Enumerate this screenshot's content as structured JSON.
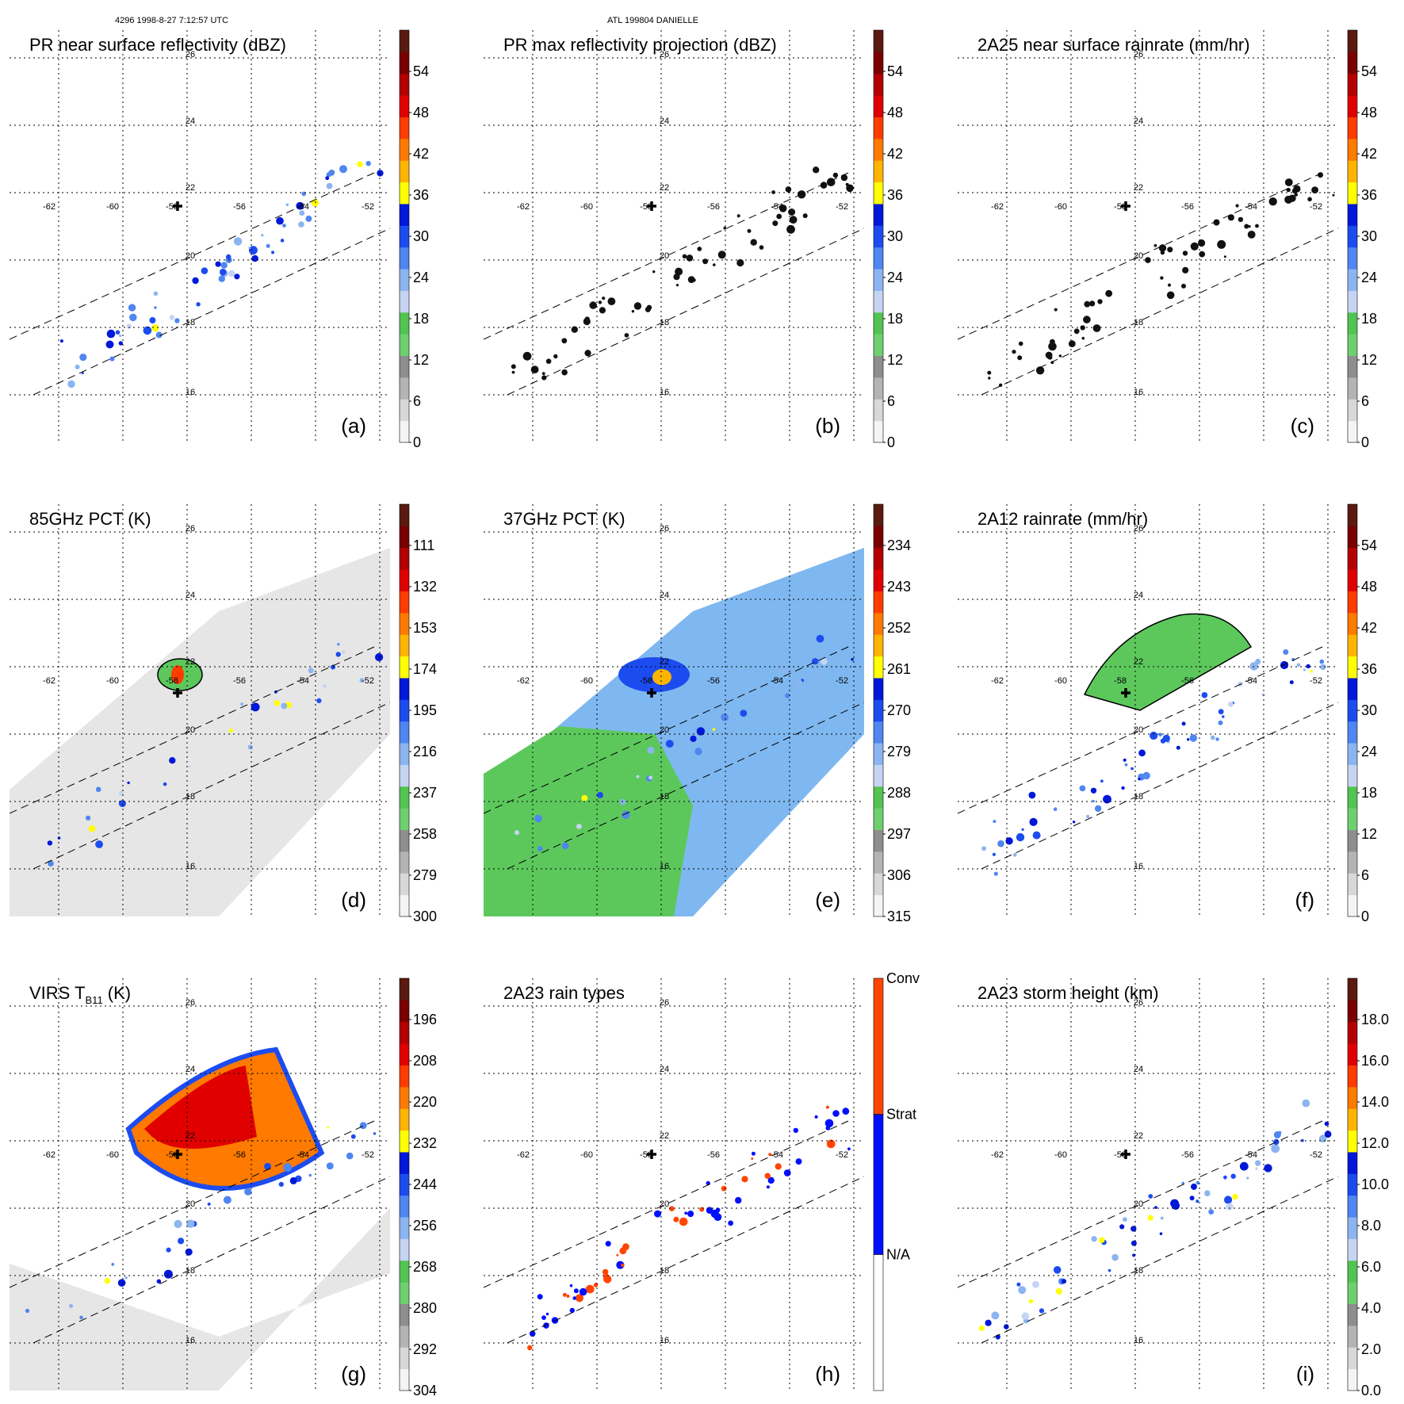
{
  "header": {
    "left": "4296 1998-8-27 7:12:57 UTC",
    "center": "ATL 199804 DANIELLE"
  },
  "map_grid": {
    "lon_labels": [
      "-62",
      "-60",
      "-58",
      "-56",
      "-54",
      "-52"
    ],
    "lat_labels": [
      "26",
      "24",
      "22",
      "20",
      "18",
      "16"
    ]
  },
  "colors": {
    "scale": [
      "#f4f4f4",
      "#d8d8d8",
      "#b4b4b4",
      "#8e8e8e",
      "#6fcf6f",
      "#52c452",
      "#c6d4f4",
      "#8cb4f0",
      "#4f86f0",
      "#1c4cf0",
      "#0018d8",
      "#ffff00",
      "#ffb400",
      "#ff7a00",
      "#ff3c00",
      "#e00000",
      "#b40000",
      "#7a0000",
      "#5a1a10"
    ],
    "rain_types": {
      "na": "#ffffff",
      "strat": "#0010ff",
      "conv": "#ff4500"
    }
  },
  "panels": [
    {
      "id": "a",
      "title": "PR near surface reflectivity (dBZ)",
      "label": "(a)",
      "ticks": [
        "0",
        "6",
        "12",
        "18",
        "24",
        "30",
        "36",
        "42",
        "48",
        "54"
      ]
    },
    {
      "id": "b",
      "title": "PR max reflectivity projection (dBZ)",
      "label": "(b)",
      "ticks": [
        "0",
        "6",
        "12",
        "18",
        "24",
        "30",
        "36",
        "42",
        "48",
        "54"
      ]
    },
    {
      "id": "c",
      "title": "2A25 near surface rainrate (mm/hr)",
      "label": "(c)",
      "ticks": [
        "0",
        "6",
        "12",
        "18",
        "24",
        "30",
        "36",
        "42",
        "48",
        "54"
      ]
    },
    {
      "id": "d",
      "title": "85GHz PCT (K)",
      "label": "(d)",
      "ticks": [
        "300",
        "279",
        "258",
        "237",
        "216",
        "195",
        "174",
        "153",
        "132",
        "111"
      ]
    },
    {
      "id": "e",
      "title": "37GHz PCT (K)",
      "label": "(e)",
      "ticks": [
        "315",
        "306",
        "297",
        "288",
        "279",
        "270",
        "261",
        "252",
        "243",
        "234"
      ]
    },
    {
      "id": "f",
      "title": "2A12 rainrate (mm/hr)",
      "label": "(f)",
      "ticks": [
        "0",
        "6",
        "12",
        "18",
        "24",
        "30",
        "36",
        "42",
        "48",
        "54"
      ]
    },
    {
      "id": "g",
      "title": "VIRS T",
      "title_sub": "B11",
      "title_tail": " (K)",
      "label": "(g)",
      "ticks": [
        "304",
        "292",
        "280",
        "268",
        "256",
        "244",
        "232",
        "220",
        "208",
        "196"
      ]
    },
    {
      "id": "h",
      "title": "2A23 rain types",
      "label": "(h)",
      "ticks": [
        "N/A",
        "Strat",
        "Conv"
      ]
    },
    {
      "id": "i",
      "title": "2A23 storm height (km)",
      "label": "(i)",
      "ticks": [
        "0.0",
        "2.0",
        "4.0",
        "6.0",
        "8.0",
        "10.0",
        "12.0",
        "14.0",
        "16.0",
        "18.0"
      ]
    }
  ]
}
